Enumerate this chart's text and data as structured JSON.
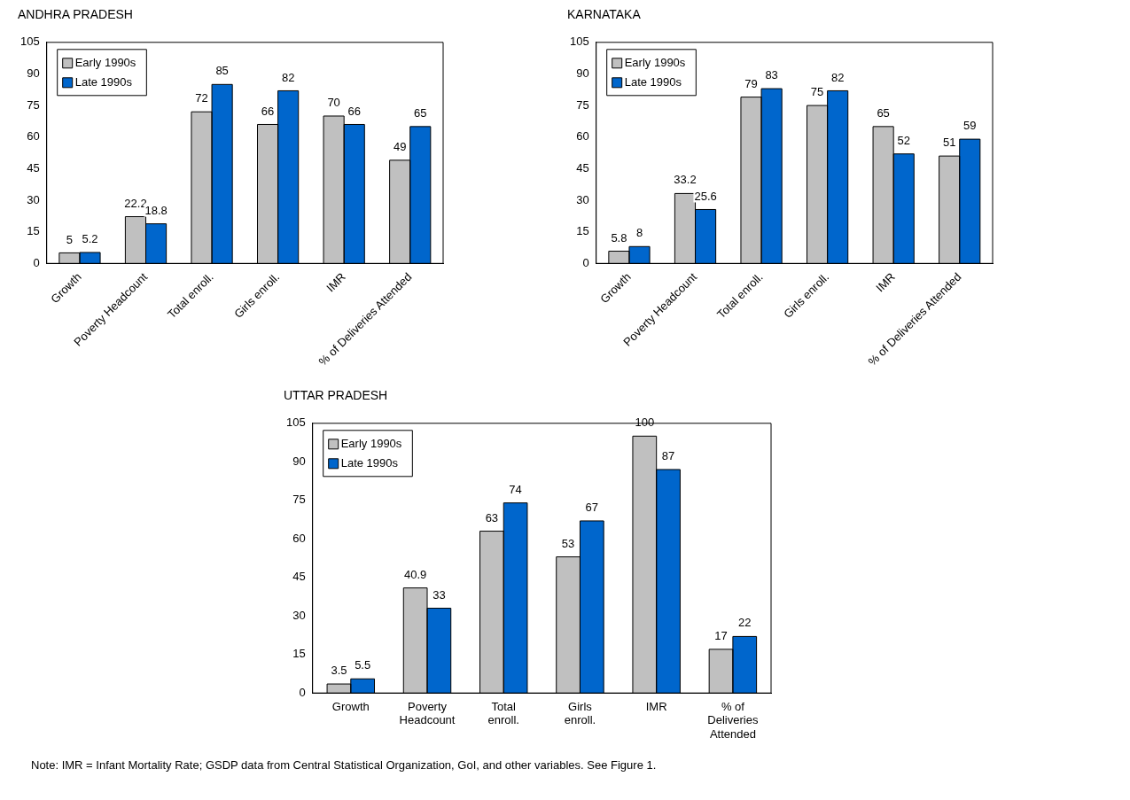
{
  "chart_data": [
    {
      "type": "bar",
      "title": "ANDHRA PRADESH",
      "categories": [
        "Growth",
        "Poverty Headcount",
        "Total enroll.",
        "Girls enroll.",
        "IMR",
        "% of Deliveries Attended"
      ],
      "series": [
        {
          "name": "Early 1990s",
          "color": "#c0c0c0",
          "values": [
            5,
            22.2,
            72,
            66,
            70,
            49
          ]
        },
        {
          "name": "Late 1990s",
          "color": "#0066cc",
          "values": [
            5.2,
            18.8,
            85,
            82,
            66,
            65
          ]
        }
      ],
      "ylim": [
        0,
        105
      ],
      "yticks": [
        0,
        15,
        30,
        45,
        60,
        75,
        90,
        105
      ],
      "grid": false,
      "legend": "top left",
      "data_labels": true
    },
    {
      "type": "bar",
      "title": "KARNATAKA",
      "categories": [
        "Growth",
        "Poverty Headcount",
        "Total enroll.",
        "Girls enroll.",
        "IMR",
        "% of Deliveries Attended"
      ],
      "series": [
        {
          "name": "Early 1990s",
          "color": "#c0c0c0",
          "values": [
            5.8,
            33.2,
            79,
            75,
            65,
            51
          ]
        },
        {
          "name": "Late 1990s",
          "color": "#0066cc",
          "values": [
            8,
            25.6,
            83,
            82,
            52,
            59
          ]
        }
      ],
      "ylim": [
        0,
        105
      ],
      "yticks": [
        0,
        15,
        30,
        45,
        60,
        75,
        90,
        105
      ],
      "grid": false,
      "legend": "top left",
      "data_labels": true
    },
    {
      "type": "bar",
      "title": "UTTAR PRADESH",
      "categories": [
        "Growth",
        "Poverty Headcount",
        "Total enroll.",
        "Girls enroll.",
        "IMR",
        "% of Deliveries Attended"
      ],
      "series": [
        {
          "name": "Early 1990s",
          "color": "#c0c0c0",
          "values": [
            3.5,
            40.9,
            63,
            53,
            100,
            17
          ]
        },
        {
          "name": "Late 1990s",
          "color": "#0066cc",
          "values": [
            5.5,
            33,
            74,
            67,
            87,
            22
          ]
        }
      ],
      "ylim": [
        0,
        105
      ],
      "yticks": [
        0,
        15,
        30,
        45,
        60,
        75,
        90,
        105
      ],
      "grid": false,
      "legend": "top left",
      "data_labels": true,
      "annotations": [
        "Note:  IMR = Infant Mortality Rate; GSDP data from Central Statistical Organization, GoI, and other variables.  See Figure 1."
      ]
    }
  ]
}
